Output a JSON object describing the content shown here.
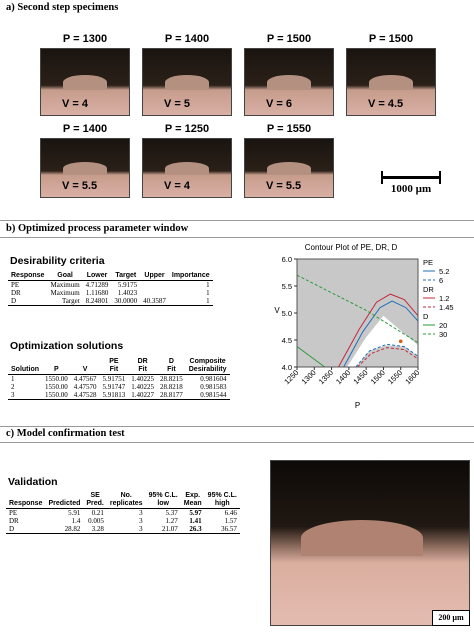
{
  "section_a": "a) Second step specimens",
  "specimens": [
    {
      "p": "P = 1300",
      "v": "V = 4"
    },
    {
      "p": "P = 1400",
      "v": "V = 5"
    },
    {
      "p": "P = 1500",
      "v": "V = 6"
    },
    {
      "p": "P = 1500",
      "v": "V = 4.5"
    },
    {
      "p": "P = 1400",
      "v": "V = 5.5"
    },
    {
      "p": "P = 1250",
      "v": "V = 4"
    },
    {
      "p": "P = 1550",
      "v": "V = 5.5"
    }
  ],
  "scale_bar": "1000 µm",
  "section_b": "b) Optimized process parameter window",
  "desirability": {
    "title": "Desirability criteria",
    "header": [
      "Response",
      "Goal",
      "Lower",
      "Target",
      "Upper",
      "Importance"
    ],
    "rows": [
      [
        "PE",
        "Maximum",
        "4.71289",
        "5.9175",
        null,
        "1"
      ],
      [
        "DR",
        "Maximum",
        "1.11680",
        "1.4023",
        null,
        "1"
      ],
      [
        "D",
        "Target",
        "8.24801",
        "30.0000",
        "40.3587",
        "1"
      ]
    ]
  },
  "optimization": {
    "title": "Optimization solutions",
    "header": [
      [
        "Solution"
      ],
      [
        "P"
      ],
      [
        "V"
      ],
      [
        "PE",
        "Fit"
      ],
      [
        "DR",
        "Fit"
      ],
      [
        "D",
        "Fit"
      ],
      [
        "Composite",
        "Desirability"
      ]
    ],
    "rows": [
      [
        "1",
        "1550.00",
        "4.47567",
        "5.91751",
        "1.40225",
        "28.8215",
        "0.981604"
      ],
      [
        "2",
        "1550.00",
        "4.47570",
        "5.91747",
        "1.40225",
        "28.8218",
        "0.981583"
      ],
      [
        "3",
        "1550.00",
        "4.47528",
        "5.91813",
        "1.40227",
        "28.8177",
        "0.981544"
      ]
    ]
  },
  "contour": {
    "title": "Contour Plot of PE, DR, D",
    "xlabel": "P",
    "ylabel": "V",
    "xlim": [
      1250,
      1600
    ],
    "xticks": [
      1250,
      1300,
      1350,
      1400,
      1450,
      1500,
      1550,
      1600
    ],
    "ylim": [
      4,
      6
    ],
    "yticks": [
      {
        "value": 4,
        "label": "4.0"
      },
      4.5,
      {
        "value": 5,
        "label": "5.0"
      },
      5.5,
      {
        "value": 6,
        "label": "6.0"
      }
    ],
    "legend": [
      {
        "name": "PE",
        "items": [
          {
            "label": "5.2",
            "color": "#1f6fb8",
            "dash": false
          },
          {
            "label": "6",
            "color": "#1f6fb8",
            "dash": true
          }
        ]
      },
      {
        "name": "DR",
        "items": [
          {
            "label": "1.2",
            "color": "#c0283a",
            "dash": false
          },
          {
            "label": "1.45",
            "color": "#c0283a",
            "dash": true
          }
        ]
      },
      {
        "name": "D",
        "items": [
          {
            "label": "20",
            "color": "#2a9a3a",
            "dash": false
          },
          {
            "label": "30",
            "color": "#2a9a3a",
            "dash": true
          }
        ]
      }
    ]
  },
  "section_c": "c) Model confirmation test",
  "validation": {
    "title": "Validation",
    "header": [
      [
        "Response"
      ],
      [
        "Predicted"
      ],
      [
        "SE",
        "Pred."
      ],
      [
        "No.",
        "replicates"
      ],
      [
        "95% C.L.",
        "low"
      ],
      [
        "Exp.",
        "Mean"
      ],
      [
        "95% C.L.",
        "high"
      ]
    ],
    "rows": [
      [
        "PE",
        "5.91",
        "0.21",
        "3",
        "5.37",
        "5.97",
        "6.46"
      ],
      [
        "DR",
        "1.4",
        "0.005",
        "3",
        "1.27",
        "1.41",
        "1.57"
      ],
      [
        "D",
        "28.82",
        "3.28",
        "3",
        "21.07",
        "26.3",
        "36.57"
      ]
    ]
  },
  "micrograph_scale": "200 µm"
}
